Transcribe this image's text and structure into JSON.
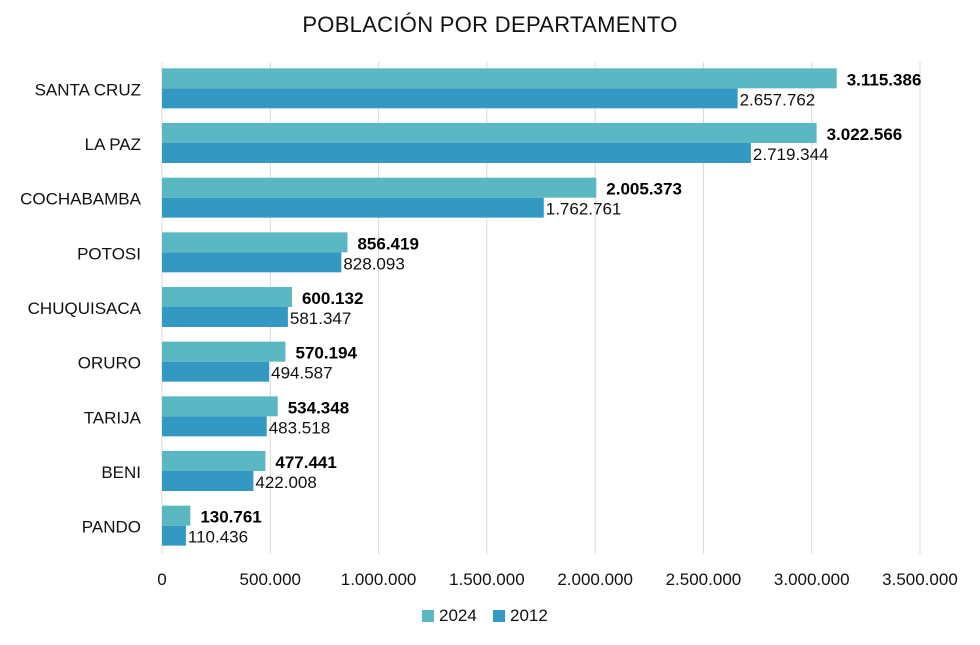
{
  "chart_data": {
    "type": "bar",
    "orientation": "horizontal",
    "title": "POBLACIÓN POR DEPARTAMENTO",
    "categories": [
      "SANTA CRUZ",
      "LA PAZ",
      "COCHABAMBA",
      "POTOSI",
      "CHUQUISACA",
      "ORURO",
      "TARIJA",
      "BENI",
      "PANDO"
    ],
    "series": [
      {
        "name": "2024",
        "color": "#5ab8c3",
        "values": [
          3115386,
          3022566,
          2005373,
          856419,
          600132,
          570194,
          534348,
          477441,
          130761
        ],
        "labels": [
          "3.115.386",
          "3.022.566",
          "2.005.373",
          "856.419",
          "600.132",
          "570.194",
          "534.348",
          "477.441",
          "130.761"
        ],
        "label_weight": "bold"
      },
      {
        "name": "2012",
        "color": "#3399c3",
        "values": [
          2657762,
          2719344,
          1762761,
          828093,
          581347,
          494587,
          483518,
          422008,
          110436
        ],
        "labels": [
          "2.657.762",
          "2.719.344",
          "1.762.761",
          "828.093",
          "581.347",
          "494.587",
          "483.518",
          "422.008",
          "110.436"
        ],
        "label_weight": "normal"
      }
    ],
    "xlim": [
      0,
      3500000
    ],
    "x_ticks": [
      0,
      500000,
      1000000,
      1500000,
      2000000,
      2500000,
      3000000,
      3500000
    ],
    "x_tick_labels": [
      "0",
      "500.000",
      "1.000.000",
      "1.500.000",
      "2.000.000",
      "2.500.000",
      "3.000.000",
      "3.500.000"
    ],
    "grid": true,
    "legend_position": "bottom"
  }
}
